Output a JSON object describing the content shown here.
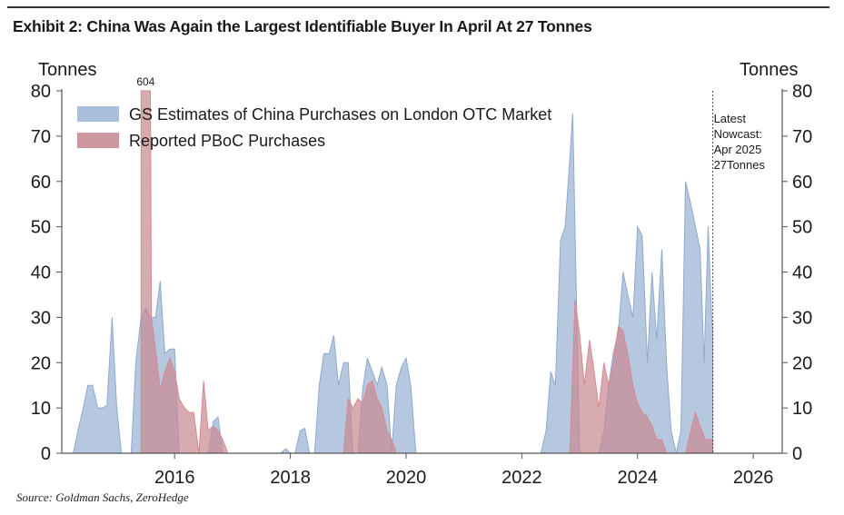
{
  "header": {
    "title": "Exhibit 2: China Was Again the Largest Identifiable Buyer In April At 27 Tonnes"
  },
  "footer": {
    "source": "Source: Goldman Sachs, ZeroHedge"
  },
  "colors": {
    "gs_fill": "#a9bedb",
    "gs_line": "#8fa9cf",
    "pboc_fill": "#c98b93",
    "pboc_line": "#d98890",
    "axis": "#555555"
  },
  "chart_data": {
    "type": "area",
    "title": "Exhibit 2: China Was Again the Largest Identifiable Buyer In April At 27 Tonnes",
    "ylabel_left": "Tonnes",
    "ylabel_right": "Tonnes",
    "xlim": [
      2014.05,
      2026.5
    ],
    "ylim": [
      0,
      80
    ],
    "yticks": [
      0,
      10,
      20,
      30,
      40,
      50,
      60,
      70,
      80
    ],
    "xticks": [
      2016,
      2018,
      2020,
      2022,
      2024,
      2026
    ],
    "legend": [
      "GS Estimates of China Purchases on London OTC Market",
      "Reported PBoC Purchases"
    ],
    "legend_position": "top-left",
    "spike_annotation": {
      "x": 2015.5,
      "label": "604"
    },
    "nowcast": {
      "x": 2025.3,
      "label_lines": [
        "Latest",
        "Nowcast:",
        "Apr 2025",
        "27Tonnes"
      ]
    },
    "series": [
      {
        "name": "GS Estimates of China Purchases on London OTC Market",
        "points": [
          [
            2014.25,
            0
          ],
          [
            2014.33,
            5
          ],
          [
            2014.42,
            10
          ],
          [
            2014.5,
            15
          ],
          [
            2014.58,
            15
          ],
          [
            2014.67,
            10
          ],
          [
            2014.75,
            10
          ],
          [
            2014.83,
            10.5
          ],
          [
            2014.92,
            30
          ],
          [
            2015.0,
            10
          ],
          [
            2015.08,
            0
          ],
          [
            2015.25,
            0
          ],
          [
            2015.33,
            20
          ],
          [
            2015.42,
            30
          ],
          [
            2015.5,
            32
          ],
          [
            2015.58,
            30
          ],
          [
            2015.67,
            30
          ],
          [
            2015.75,
            38
          ],
          [
            2015.83,
            22
          ],
          [
            2015.92,
            23
          ],
          [
            2016.0,
            23
          ],
          [
            2016.08,
            0
          ],
          [
            2016.58,
            0
          ],
          [
            2016.67,
            7
          ],
          [
            2016.75,
            8
          ],
          [
            2016.83,
            0
          ],
          [
            2017.83,
            0
          ],
          [
            2017.92,
            1
          ],
          [
            2018.0,
            0
          ],
          [
            2018.08,
            0
          ],
          [
            2018.17,
            5
          ],
          [
            2018.25,
            5.5
          ],
          [
            2018.33,
            0
          ],
          [
            2018.42,
            0
          ],
          [
            2018.5,
            15
          ],
          [
            2018.58,
            22
          ],
          [
            2018.67,
            22
          ],
          [
            2018.75,
            26
          ],
          [
            2018.83,
            15
          ],
          [
            2018.92,
            20
          ],
          [
            2019.0,
            20
          ],
          [
            2019.08,
            0
          ],
          [
            2019.17,
            0
          ],
          [
            2019.25,
            14
          ],
          [
            2019.33,
            21
          ],
          [
            2019.42,
            18
          ],
          [
            2019.5,
            15
          ],
          [
            2019.58,
            19
          ],
          [
            2019.67,
            15
          ],
          [
            2019.75,
            0
          ],
          [
            2019.83,
            15
          ],
          [
            2019.92,
            19
          ],
          [
            2020.0,
            21
          ],
          [
            2020.08,
            15
          ],
          [
            2020.17,
            0
          ],
          [
            2022.33,
            0
          ],
          [
            2022.42,
            5
          ],
          [
            2022.5,
            18
          ],
          [
            2022.58,
            15
          ],
          [
            2022.67,
            47
          ],
          [
            2022.75,
            50
          ],
          [
            2022.83,
            65
          ],
          [
            2022.88,
            75
          ],
          [
            2022.95,
            30
          ],
          [
            2023.0,
            0
          ],
          [
            2023.33,
            0
          ],
          [
            2023.42,
            5
          ],
          [
            2023.5,
            15
          ],
          [
            2023.58,
            22
          ],
          [
            2023.67,
            27
          ],
          [
            2023.75,
            40
          ],
          [
            2023.83,
            35
          ],
          [
            2023.92,
            30
          ],
          [
            2024.0,
            50
          ],
          [
            2024.08,
            48
          ],
          [
            2024.17,
            20
          ],
          [
            2024.25,
            40
          ],
          [
            2024.33,
            25
          ],
          [
            2024.42,
            45
          ],
          [
            2024.5,
            20
          ],
          [
            2024.58,
            5
          ],
          [
            2024.67,
            0
          ],
          [
            2024.75,
            5
          ],
          [
            2024.83,
            60
          ],
          [
            2024.92,
            55
          ],
          [
            2025.0,
            50
          ],
          [
            2025.08,
            45
          ],
          [
            2025.15,
            20
          ],
          [
            2025.22,
            50
          ],
          [
            2025.28,
            30
          ],
          [
            2025.3,
            27
          ],
          [
            2025.3,
            0
          ]
        ]
      },
      {
        "name": "Reported PBoC Purchases",
        "points": [
          [
            2015.42,
            0
          ],
          [
            2015.42,
            80
          ],
          [
            2015.58,
            80
          ],
          [
            2015.6,
            30
          ],
          [
            2015.67,
            23
          ],
          [
            2015.75,
            14
          ],
          [
            2015.83,
            18
          ],
          [
            2015.92,
            21
          ],
          [
            2016.0,
            18
          ],
          [
            2016.08,
            12
          ],
          [
            2016.17,
            10
          ],
          [
            2016.25,
            9
          ],
          [
            2016.33,
            9
          ],
          [
            2016.42,
            0
          ],
          [
            2016.5,
            16
          ],
          [
            2016.58,
            5
          ],
          [
            2016.67,
            6
          ],
          [
            2016.75,
            5
          ],
          [
            2016.83,
            3
          ],
          [
            2016.92,
            0
          ],
          [
            2018.92,
            0
          ],
          [
            2019.0,
            12
          ],
          [
            2019.08,
            10
          ],
          [
            2019.17,
            12
          ],
          [
            2019.25,
            11
          ],
          [
            2019.33,
            15
          ],
          [
            2019.42,
            16
          ],
          [
            2019.5,
            12
          ],
          [
            2019.58,
            10
          ],
          [
            2019.67,
            5
          ],
          [
            2019.75,
            3
          ],
          [
            2019.83,
            0
          ],
          [
            2022.83,
            0
          ],
          [
            2022.92,
            34
          ],
          [
            2023.0,
            26
          ],
          [
            2023.08,
            15
          ],
          [
            2023.17,
            25
          ],
          [
            2023.25,
            18
          ],
          [
            2023.33,
            10
          ],
          [
            2023.42,
            20
          ],
          [
            2023.5,
            15
          ],
          [
            2023.58,
            20
          ],
          [
            2023.67,
            28
          ],
          [
            2023.75,
            27
          ],
          [
            2023.83,
            22
          ],
          [
            2023.92,
            15
          ],
          [
            2024.0,
            11
          ],
          [
            2024.08,
            9
          ],
          [
            2024.17,
            8
          ],
          [
            2024.25,
            6
          ],
          [
            2024.33,
            3
          ],
          [
            2024.42,
            3
          ],
          [
            2024.5,
            0
          ],
          [
            2024.83,
            0
          ],
          [
            2024.92,
            5
          ],
          [
            2025.0,
            9
          ],
          [
            2025.08,
            6
          ],
          [
            2025.17,
            3
          ],
          [
            2025.25,
            3
          ],
          [
            2025.3,
            3
          ],
          [
            2025.3,
            0
          ]
        ]
      }
    ]
  }
}
